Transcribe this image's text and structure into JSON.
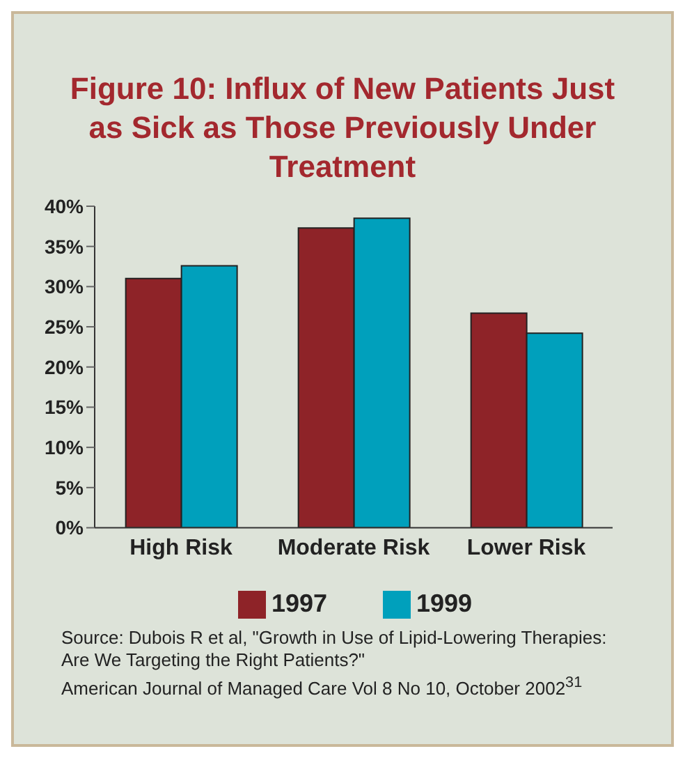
{
  "chart_data": {
    "type": "bar",
    "title": "Figure 10: Influx of New Patients Just as Sick as Those Previously Under Treatment",
    "categories": [
      "High Risk",
      "Moderate Risk",
      "Lower Risk"
    ],
    "series": [
      {
        "name": "1997",
        "color": "#8e2328",
        "values": [
          31.0,
          37.3,
          26.7
        ]
      },
      {
        "name": "1999",
        "color": "#00a0bc",
        "values": [
          32.6,
          38.5,
          24.2
        ]
      }
    ],
    "ylim": [
      0,
      40
    ],
    "yticks": [
      {
        "value": 0,
        "label": "0%"
      },
      {
        "value": 5,
        "label": "5%"
      },
      {
        "value": 10,
        "label": "10%"
      },
      {
        "value": 15,
        "label": "15%"
      },
      {
        "value": 20,
        "label": "20%"
      },
      {
        "value": 25,
        "label": "25%"
      },
      {
        "value": 30,
        "label": "30%"
      },
      {
        "value": 35,
        "label": "35%"
      },
      {
        "value": 40,
        "label": "40%"
      }
    ],
    "grid": false,
    "legend": "bottom",
    "annotations": [
      "Source: Dubois R et al, \"Growth in Use of Lipid-Lowering Therapies: Are We Targeting the Right Patients?\"",
      "American Journal of Managed Care Vol 8 No 10, October 2002$^{31}$"
    ]
  }
}
